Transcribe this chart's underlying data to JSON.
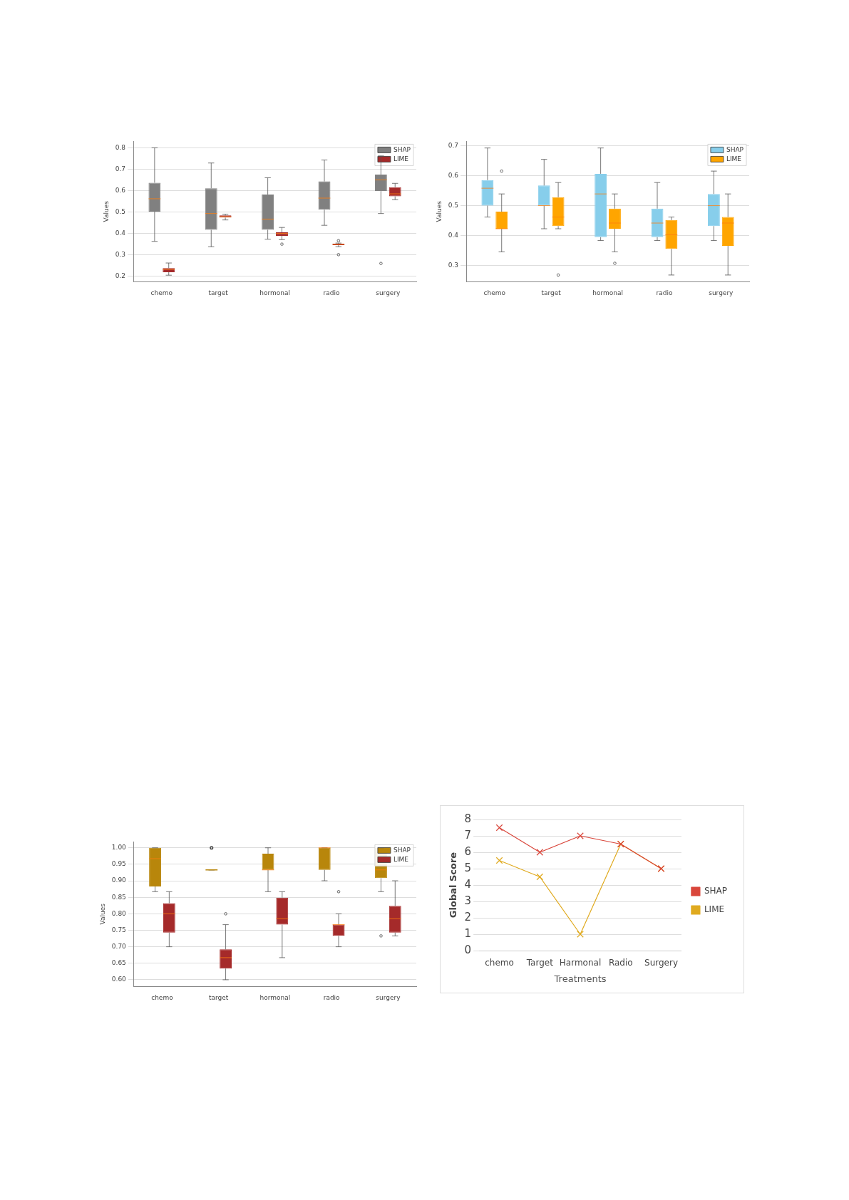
{
  "chart_data": [
    {
      "type": "box",
      "ylabel": "Values",
      "categories": [
        "chemo",
        "target",
        "hormonal",
        "radio",
        "surgery"
      ],
      "ylim": [
        0.175,
        0.83
      ],
      "yticks": [
        0.2,
        0.3,
        0.4,
        0.5,
        0.6,
        0.7,
        0.8
      ],
      "grid": "y",
      "legend": "top right",
      "series": [
        {
          "name": "SHAP",
          "color": "#808080",
          "boxes": [
            {
              "low": 0.363,
              "q1": 0.502,
              "median": 0.562,
              "q3": 0.637,
              "high": 0.8
            },
            {
              "low": 0.338,
              "q1": 0.417,
              "median": 0.493,
              "q3": 0.611,
              "high": 0.729
            },
            {
              "low": 0.373,
              "q1": 0.417,
              "median": 0.467,
              "q3": 0.582,
              "high": 0.66
            },
            {
              "low": 0.438,
              "q1": 0.511,
              "median": 0.565,
              "q3": 0.643,
              "high": 0.743
            },
            {
              "low": 0.493,
              "q1": 0.598,
              "median": 0.65,
              "q3": 0.675,
              "high": 0.762,
              "outliers": [
                0.26
              ]
            }
          ]
        },
        {
          "name": "LIME",
          "color": "#a52a2a",
          "boxes": [
            {
              "low": 0.205,
              "q1": 0.219,
              "median": 0.232,
              "q3": 0.238,
              "high": 0.262
            },
            {
              "low": 0.463,
              "q1": 0.474,
              "median": 0.478,
              "q3": 0.484,
              "high": 0.49
            },
            {
              "low": 0.371,
              "q1": 0.389,
              "median": 0.4,
              "q3": 0.405,
              "high": 0.428,
              "outliers": [
                0.35
              ]
            },
            {
              "low": 0.338,
              "q1": 0.345,
              "median": 0.349,
              "q3": 0.352,
              "high": 0.355,
              "outliers": [
                0.366,
                0.301
              ]
            },
            {
              "low": 0.558,
              "q1": 0.573,
              "median": 0.585,
              "q3": 0.616,
              "high": 0.634
            }
          ]
        }
      ]
    },
    {
      "type": "box",
      "ylabel": "Values",
      "categories": [
        "chemo",
        "target",
        "hormonal",
        "radio",
        "surgery"
      ],
      "ylim": [
        0.247,
        0.714
      ],
      "yticks": [
        0.3,
        0.4,
        0.5,
        0.6,
        0.7
      ],
      "grid": "y",
      "legend": "top right",
      "series": [
        {
          "name": "SHAP",
          "color": "#87ceeb",
          "boxes": [
            {
              "low": 0.462,
              "q1": 0.5,
              "median": 0.558,
              "q3": 0.585,
              "high": 0.692
            },
            {
              "low": 0.423,
              "q1": 0.5,
              "median": 0.5,
              "q3": 0.567,
              "high": 0.654
            },
            {
              "low": 0.384,
              "q1": 0.395,
              "median": 0.539,
              "q3": 0.606,
              "high": 0.692
            },
            {
              "low": 0.384,
              "q1": 0.395,
              "median": 0.442,
              "q3": 0.49,
              "high": 0.577
            },
            {
              "low": 0.384,
              "q1": 0.432,
              "median": 0.5,
              "q3": 0.539,
              "high": 0.615
            }
          ]
        },
        {
          "name": "LIME",
          "color": "#ffa500",
          "boxes": [
            {
              "low": 0.346,
              "q1": 0.423,
              "median": 0.423,
              "q3": 0.48,
              "high": 0.539,
              "outliers": [
                0.615
              ]
            },
            {
              "low": 0.423,
              "q1": 0.432,
              "median": 0.462,
              "q3": 0.528,
              "high": 0.577,
              "outliers": [
                0.269
              ]
            },
            {
              "low": 0.346,
              "q1": 0.423,
              "median": 0.442,
              "q3": 0.49,
              "high": 0.539,
              "outliers": [
                0.308
              ]
            },
            {
              "low": 0.269,
              "q1": 0.356,
              "median": 0.403,
              "q3": 0.452,
              "high": 0.462
            },
            {
              "low": 0.269,
              "q1": 0.366,
              "median": 0.442,
              "q3": 0.462,
              "high": 0.539
            }
          ]
        }
      ]
    },
    {
      "type": "box",
      "ylabel": "Values",
      "categories": [
        "chemo",
        "target",
        "hormonal",
        "radio",
        "surgery"
      ],
      "ylim": [
        0.58,
        1.018
      ],
      "yticks": [
        {
          "value": 0.6,
          "label": "0.60"
        },
        0.65,
        {
          "value": 0.7,
          "label": "0.70"
        },
        0.75,
        {
          "value": 0.8,
          "label": "0.80"
        },
        0.85,
        {
          "value": 0.9,
          "label": "0.90"
        },
        0.95,
        {
          "value": 1,
          "label": "1.00"
        }
      ],
      "grid": "y",
      "legend": "top right",
      "series": [
        {
          "name": "SHAP",
          "color": "#b8860b",
          "boxes": [
            {
              "low": 0.867,
              "q1": 0.883,
              "median": 0.967,
              "q3": 1,
              "high": 1
            },
            {
              "low": 0.933,
              "q1": 0.933,
              "median": 0.933,
              "q3": 0.933,
              "high": 0.933,
              "outliers": [
                1
              ]
            },
            {
              "low": 0.867,
              "q1": 0.933,
              "median": 0.933,
              "q3": 0.982,
              "high": 1
            },
            {
              "low": 0.9,
              "q1": 0.933,
              "median": 1,
              "q3": 1,
              "high": 1
            },
            {
              "low": 0.867,
              "q1": 0.908,
              "median": 0.933,
              "q3": 1,
              "high": 1,
              "outliers": [
                0.733
              ]
            }
          ]
        },
        {
          "name": "LIME",
          "color": "#a52a2a",
          "boxes": [
            {
              "low": 0.7,
              "q1": 0.743,
              "median": 0.8,
              "q3": 0.832,
              "high": 0.867
            },
            {
              "low": 0.6,
              "q1": 0.634,
              "median": 0.667,
              "q3": 0.692,
              "high": 0.767,
              "outliers": [
                0.8
              ]
            },
            {
              "low": 0.667,
              "q1": 0.767,
              "median": 0.785,
              "q3": 0.849,
              "high": 0.867
            },
            {
              "low": 0.7,
              "q1": 0.733,
              "median": 0.767,
              "q3": 0.767,
              "high": 0.8,
              "outliers": [
                0.867
              ]
            },
            {
              "low": 0.733,
              "q1": 0.743,
              "median": 0.785,
              "q3": 0.824,
              "high": 0.9
            }
          ]
        }
      ]
    },
    {
      "type": "line",
      "xlabel": "Treatments",
      "ylabel": "Global Score",
      "categories": [
        "chemo",
        "Target",
        "Harmonal",
        "Radio",
        "Surgery"
      ],
      "ylim": [
        0,
        8
      ],
      "yticks": [
        0,
        1,
        2,
        3,
        4,
        5,
        6,
        7,
        8
      ],
      "grid": "y",
      "legend": "right",
      "marker": "cross",
      "series": [
        {
          "name": "SHAP",
          "color": "#d9463b",
          "values": [
            7.5,
            6,
            7,
            6.5,
            5
          ]
        },
        {
          "name": "LIME",
          "color": "#e0aa1f",
          "values": [
            5.5,
            4.5,
            1,
            6.5,
            5
          ]
        }
      ]
    }
  ]
}
